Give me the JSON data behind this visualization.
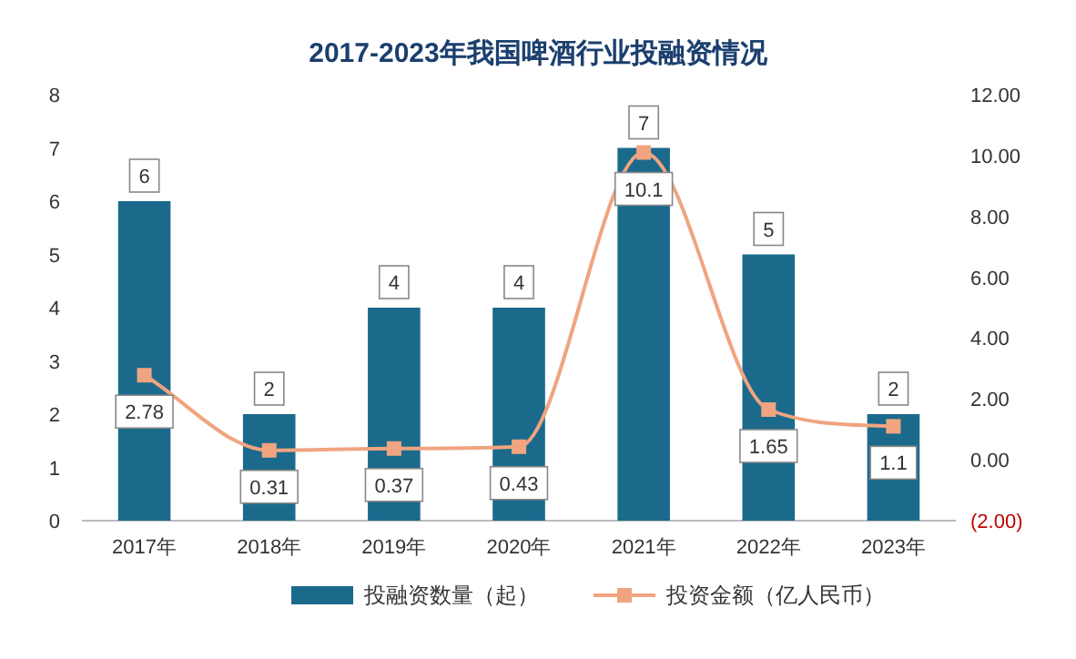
{
  "chart_data": {
    "type": "bar",
    "title": "2017-2023年我国啤酒行业投融资情况",
    "categories": [
      "2017年",
      "2018年",
      "2019年",
      "2020年",
      "2021年",
      "2022年",
      "2023年"
    ],
    "series": [
      {
        "name": "投融资数量（起）",
        "color": "#1b6a8c",
        "values": [
          6,
          2,
          4,
          4,
          7,
          5,
          2
        ]
      },
      {
        "name": "投资金额（亿人民币）",
        "type": "line",
        "axis": "y2",
        "color": "#f0a480",
        "marker": "square",
        "values": [
          2.78,
          0.31,
          0.37,
          0.43,
          10.1,
          1.65,
          1.1
        ]
      }
    ],
    "ylim": [
      0,
      8
    ],
    "yticks": [
      0,
      1,
      2,
      3,
      4,
      5,
      6,
      7,
      8
    ],
    "y2lim": [
      -2,
      12
    ],
    "y2ticks": [
      {
        "value": -2,
        "label": "(2.00)"
      },
      {
        "value": 0,
        "label": "0.00"
      },
      {
        "value": 2,
        "label": "2.00"
      },
      {
        "value": 4,
        "label": "4.00"
      },
      {
        "value": 6,
        "label": "6.00"
      },
      {
        "value": 8,
        "label": "8.00"
      },
      {
        "value": 10,
        "label": "10.00"
      },
      {
        "value": 12,
        "label": "12.00"
      }
    ],
    "data_labels": true,
    "legend": "bottom",
    "grid": false
  }
}
